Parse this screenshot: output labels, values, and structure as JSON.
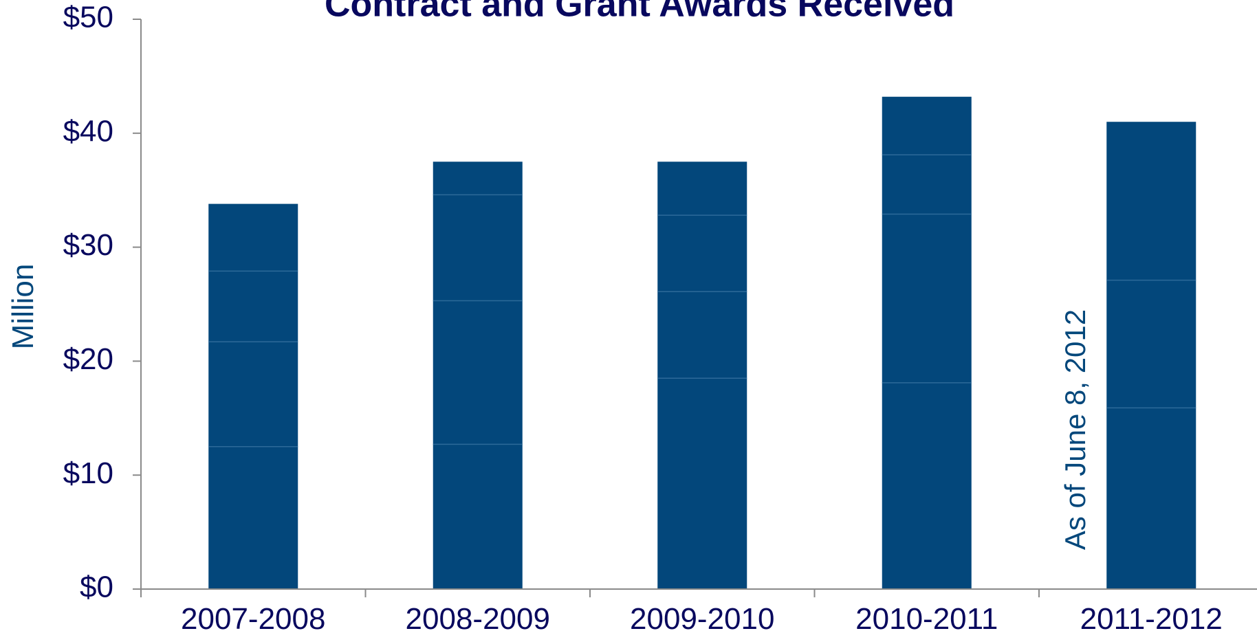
{
  "chart_data": {
    "type": "bar",
    "title": "Contract and Grant Awards Received",
    "ylabel": "Million",
    "ylim": [
      0,
      50
    ],
    "yticks": [
      "$0",
      "$10",
      "$20",
      "$30",
      "$40",
      "$50"
    ],
    "ytick_values": [
      0,
      10,
      20,
      30,
      40,
      50
    ],
    "categories": [
      "2007-2008",
      "2008-2009",
      "2009-2010",
      "2010-2011",
      "2011-2012"
    ],
    "segments": [
      [
        12.5,
        9.2,
        6.2,
        5.9
      ],
      [
        12.7,
        12.6,
        9.3,
        2.9
      ],
      [
        18.5,
        7.6,
        6.7,
        4.7
      ],
      [
        18.1,
        14.8,
        5.2,
        5.1
      ],
      [
        15.9,
        11.2,
        13.9
      ]
    ],
    "values": [
      33.8,
      37.5,
      37.5,
      43.2,
      41.0
    ],
    "annotation": "As of June 8, 2012",
    "grid": false,
    "colors": {
      "bar": "#03477b",
      "segment_line": "#2d6a99",
      "text": "#08085e",
      "axis": "#8a8a8a",
      "ylabel": "#03477b",
      "annotation": "#03477b"
    }
  }
}
